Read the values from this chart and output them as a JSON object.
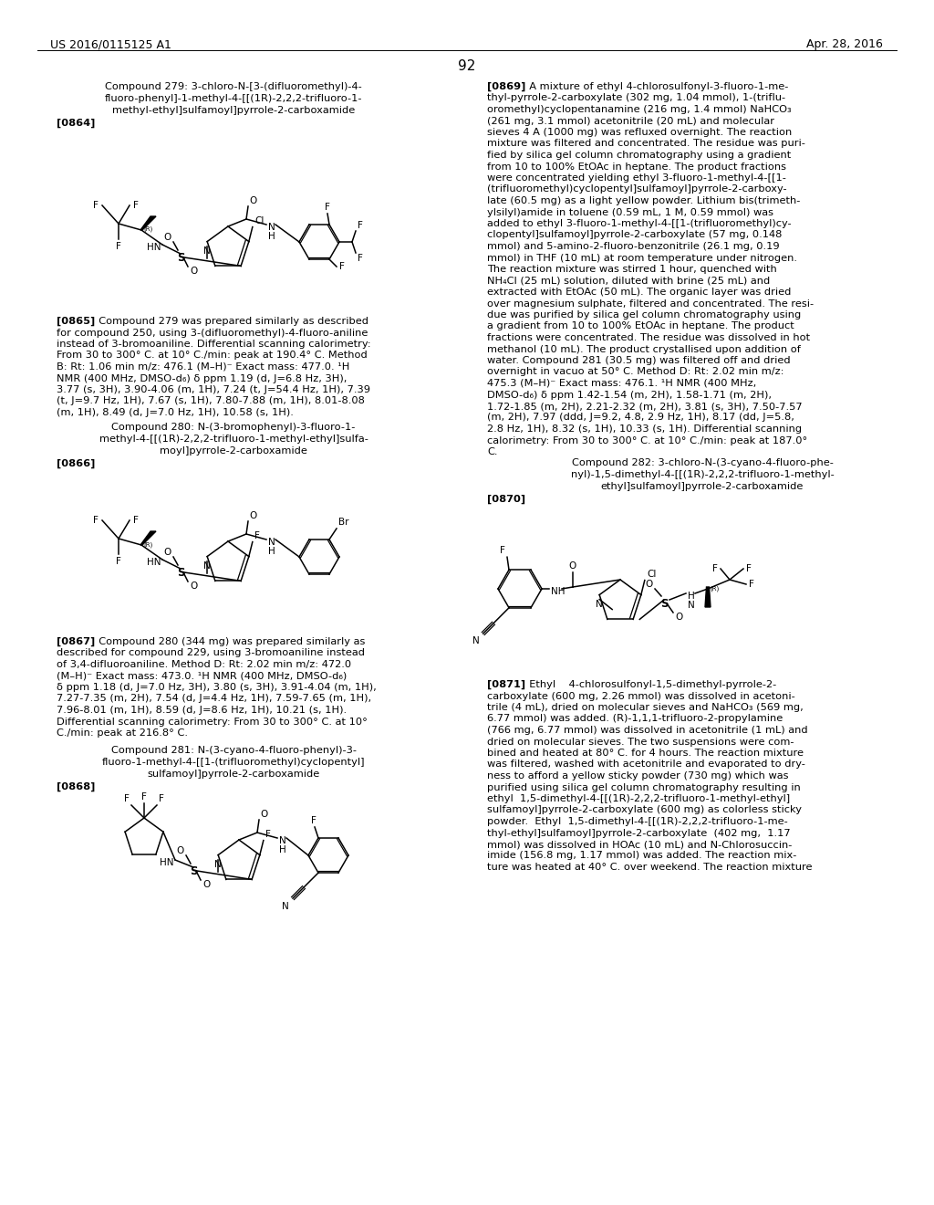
{
  "bg": "#ffffff",
  "patent_left": "US 2016/0115125 A1",
  "patent_right": "Apr. 28, 2016",
  "page_num": "92"
}
